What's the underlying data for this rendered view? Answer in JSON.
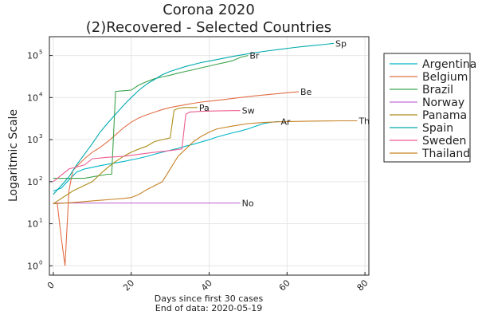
{
  "chart_data": {
    "type": "line",
    "title_line1": "Corona 2020",
    "title_line2": "(2)Recovered - Selected Countries",
    "xlabel_line1": "Days since first 30 cases",
    "xlabel_line2": "End of data: 2020-05-19",
    "ylabel": "Logaritmic Scale",
    "yscale": "log",
    "xlim": [
      -1,
      81
    ],
    "ylim": [
      0.6,
      280000
    ],
    "xticks": [
      0,
      20,
      40,
      60,
      80
    ],
    "yticks": [
      {
        "value": 1,
        "base": "10",
        "exp": "0"
      },
      {
        "value": 10,
        "base": "10",
        "exp": "1"
      },
      {
        "value": 100,
        "base": "10",
        "exp": "2"
      },
      {
        "value": 1000,
        "base": "10",
        "exp": "3"
      },
      {
        "value": 10000,
        "base": "10",
        "exp": "4"
      },
      {
        "value": 100000,
        "base": "10",
        "exp": "5"
      }
    ],
    "grid": true,
    "legend_position": "right",
    "series": [
      {
        "name": "Argentina",
        "label": "Ar",
        "color": "#00b5c6",
        "x": [
          0,
          2,
          4,
          6,
          8,
          10,
          12,
          14,
          16,
          18,
          20,
          22,
          24,
          26,
          28,
          30,
          32,
          34,
          36,
          38,
          40,
          42,
          44,
          46,
          48,
          50,
          52,
          54,
          56,
          58
        ],
        "y": [
          60,
          70,
          110,
          170,
          200,
          220,
          240,
          260,
          280,
          300,
          330,
          360,
          400,
          450,
          500,
          560,
          620,
          700,
          780,
          880,
          1000,
          1150,
          1300,
          1450,
          1600,
          1800,
          2100,
          2400,
          2600,
          2700
        ]
      },
      {
        "name": "Belgium",
        "label": "Be",
        "color": "#e26f46",
        "x": [
          0,
          1,
          2,
          3,
          4,
          5,
          6,
          8,
          10,
          12,
          14,
          16,
          18,
          20,
          22,
          24,
          26,
          28,
          30,
          32,
          34,
          36,
          38,
          40,
          44,
          48,
          52,
          56,
          60,
          63
        ],
        "y": [
          31,
          31,
          5,
          1,
          60,
          180,
          230,
          350,
          500,
          650,
          900,
          1300,
          1900,
          2600,
          3300,
          3900,
          4500,
          5200,
          5800,
          6300,
          6800,
          7300,
          7800,
          8200,
          9000,
          10000,
          11000,
          12000,
          13000,
          13700
        ]
      },
      {
        "name": "Brazil",
        "label": "Br",
        "color": "#3da44d",
        "x": [
          0,
          2,
          4,
          6,
          8,
          10,
          12,
          14,
          15,
          16,
          18,
          20,
          22,
          24,
          26,
          28,
          30,
          32,
          34,
          36,
          38,
          40,
          42,
          44,
          46,
          48,
          50
        ],
        "y": [
          120,
          120,
          120,
          120,
          120,
          130,
          140,
          150,
          150,
          14000,
          14500,
          15000,
          20000,
          24000,
          28000,
          31000,
          34000,
          38000,
          42000,
          46000,
          51000,
          56000,
          62000,
          68000,
          75000,
          90000,
          100000
        ]
      },
      {
        "name": "Norway",
        "label": "No",
        "color": "#c271d2",
        "x": [
          0,
          5,
          10,
          15,
          20,
          25,
          30,
          35,
          40,
          45,
          48
        ],
        "y": [
          31,
          31,
          31,
          31,
          31,
          31,
          31,
          31,
          31,
          31,
          31
        ]
      },
      {
        "name": "Panama",
        "label": "Pa",
        "color": "#ac8d18",
        "x": [
          0,
          5,
          10,
          12,
          14,
          16,
          18,
          20,
          22,
          24,
          26,
          28,
          30,
          31,
          32,
          33,
          34,
          35,
          36,
          37
        ],
        "y": [
          30,
          60,
          100,
          150,
          220,
          300,
          400,
          500,
          600,
          700,
          900,
          1000,
          1100,
          5000,
          5500,
          5700,
          5800,
          5800,
          5800,
          5800
        ]
      },
      {
        "name": "Spain",
        "label": "Sp",
        "color": "#00a9ad",
        "x": [
          0,
          2,
          4,
          6,
          8,
          10,
          12,
          14,
          16,
          18,
          20,
          22,
          24,
          26,
          28,
          30,
          34,
          38,
          42,
          46,
          50,
          54,
          58,
          62,
          66,
          70,
          72
        ],
        "y": [
          50,
          80,
          130,
          250,
          450,
          800,
          1500,
          2500,
          4000,
          6500,
          10000,
          15000,
          21000,
          27000,
          35000,
          42000,
          55000,
          68000,
          80000,
          95000,
          110000,
          125000,
          140000,
          155000,
          170000,
          185000,
          195000
        ]
      },
      {
        "name": "Sweden",
        "label": "Sw",
        "color": "#ed5e93",
        "x": [
          0,
          4,
          8,
          10,
          14,
          18,
          22,
          26,
          30,
          33,
          34,
          35,
          38,
          42,
          46,
          48
        ],
        "y": [
          100,
          200,
          250,
          350,
          380,
          400,
          450,
          500,
          550,
          600,
          4000,
          4500,
          4700,
          4800,
          4900,
          4900
        ]
      },
      {
        "name": "Thailand",
        "label": "Th",
        "color": "#c68225",
        "x": [
          0,
          5,
          10,
          15,
          18,
          20,
          22,
          24,
          26,
          28,
          30,
          32,
          34,
          36,
          38,
          40,
          42,
          46,
          50,
          54,
          58,
          62,
          66,
          70,
          74,
          78
        ],
        "y": [
          30,
          32,
          35,
          38,
          40,
          42,
          50,
          65,
          80,
          100,
          200,
          400,
          600,
          900,
          1200,
          1500,
          1800,
          2100,
          2400,
          2550,
          2650,
          2700,
          2750,
          2780,
          2800,
          2800
        ]
      }
    ]
  }
}
